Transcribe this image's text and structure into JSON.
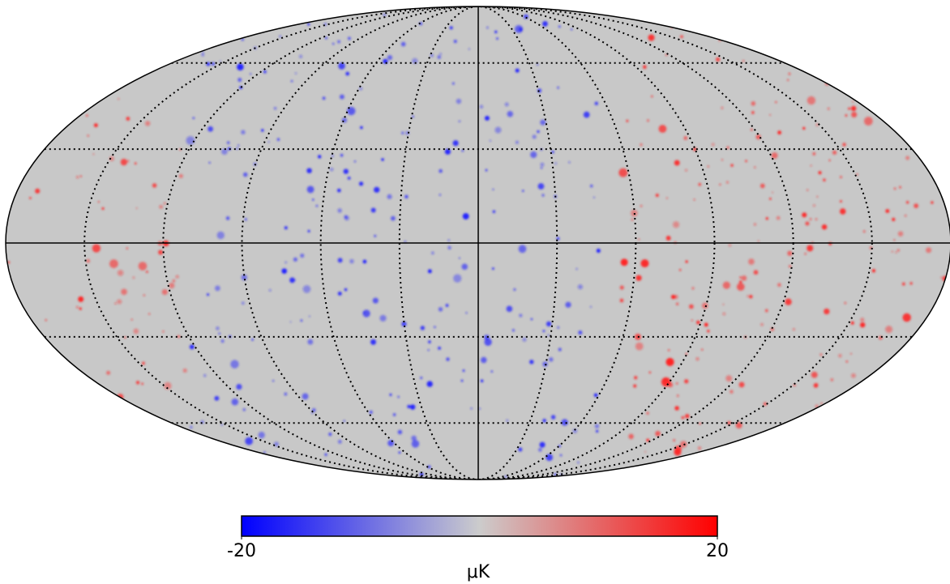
{
  "map": {
    "colorbar": {
      "min": -20,
      "max": 20,
      "ticks": [
        -20,
        20
      ],
      "unit": "μK"
    }
  }
}
